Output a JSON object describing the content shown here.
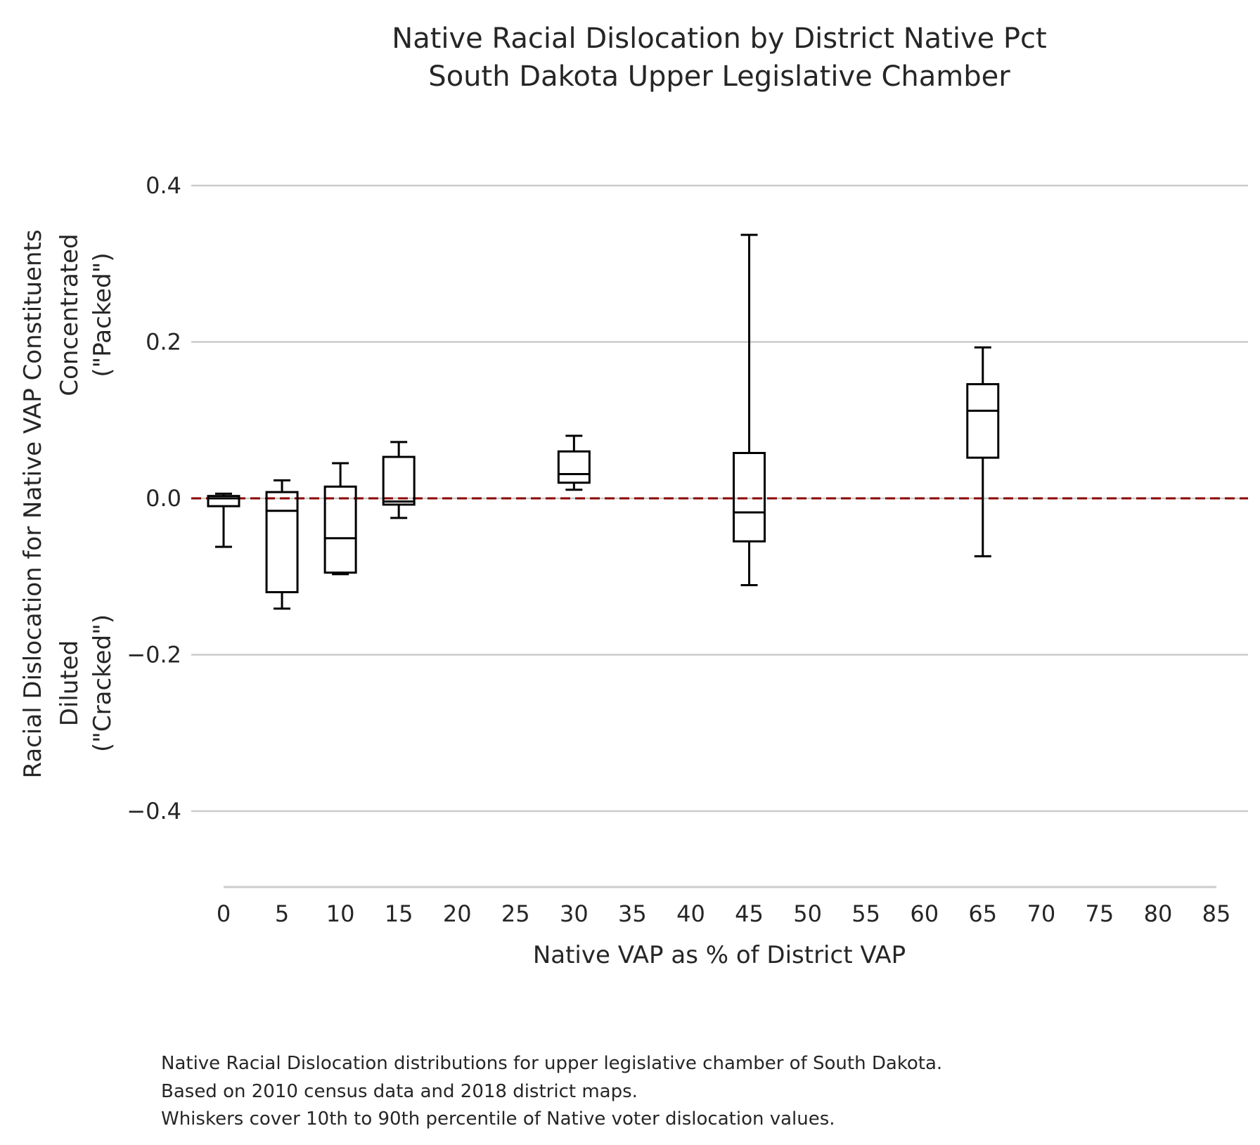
{
  "chart_data": {
    "type": "box",
    "title": [
      "Native Racial Dislocation by District Native Pct",
      "South Dakota Upper Legislative Chamber"
    ],
    "xlabel": "Native VAP as % of District VAP",
    "ylabel": [
      "Racial Dislocation for Native VAP Constituents",
      "Concentrated",
      "(\"Packed\")",
      "Diluted",
      "(\"Cracked\")"
    ],
    "xlim": [
      0,
      85
    ],
    "ylim": [
      -0.5,
      0.4
    ],
    "x_ticks": [
      0,
      5,
      10,
      15,
      20,
      25,
      30,
      35,
      40,
      45,
      50,
      55,
      60,
      65,
      70,
      75,
      80,
      85
    ],
    "y_ticks": [
      0.4,
      0.2,
      0.0,
      -0.2,
      -0.4
    ],
    "y_tick_labels": [
      "0.4",
      "0.2",
      "0.0",
      "−0.2",
      "−0.4"
    ],
    "grid": "horizontal",
    "reference_line": {
      "y": 0.0,
      "style": "dashed",
      "color": "#8b0000"
    },
    "box_color": "#000000",
    "boxes": [
      {
        "x": 0,
        "whisker_low": -0.062,
        "q1": -0.01,
        "median": 0.0,
        "q3": 0.003,
        "whisker_high": 0.006
      },
      {
        "x": 5,
        "whisker_low": -0.141,
        "q1": -0.12,
        "median": -0.016,
        "q3": 0.008,
        "whisker_high": 0.023
      },
      {
        "x": 10,
        "whisker_low": -0.097,
        "q1": -0.095,
        "median": -0.051,
        "q3": 0.015,
        "whisker_high": 0.045
      },
      {
        "x": 15,
        "whisker_low": -0.025,
        "q1": -0.008,
        "median": -0.004,
        "q3": 0.053,
        "whisker_high": 0.072
      },
      {
        "x": 30,
        "whisker_low": 0.011,
        "q1": 0.02,
        "median": 0.031,
        "q3": 0.06,
        "whisker_high": 0.08
      },
      {
        "x": 45,
        "whisker_low": -0.111,
        "q1": -0.055,
        "median": -0.018,
        "q3": 0.058,
        "whisker_high": 0.337
      },
      {
        "x": 65,
        "whisker_low": -0.074,
        "q1": 0.052,
        "median": 0.112,
        "q3": 0.146,
        "whisker_high": 0.193
      }
    ],
    "notes": [
      "Native Racial Dislocation distributions for upper legislative chamber of South Dakota.",
      "Based on 2010 census data and 2018 district maps.",
      "Whiskers cover 10th to 90th percentile of Native voter dislocation values."
    ]
  }
}
